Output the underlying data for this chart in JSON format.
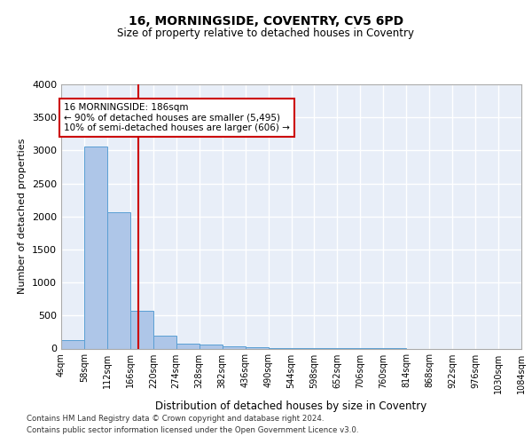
{
  "title": "16, MORNINGSIDE, COVENTRY, CV5 6PD",
  "subtitle": "Size of property relative to detached houses in Coventry",
  "xlabel": "Distribution of detached houses by size in Coventry",
  "ylabel": "Number of detached properties",
  "bar_color": "#aec6e8",
  "bar_edge_color": "#5a9fd4",
  "background_color": "#e8eef8",
  "grid_color": "#ffffff",
  "annotation_line_color": "#cc0000",
  "annotation_box_color": "#cc0000",
  "annotation_text": "16 MORNINGSIDE: 186sqm\n← 90% of detached houses are smaller (5,495)\n10% of semi-detached houses are larger (606) →",
  "footer_line1": "Contains HM Land Registry data © Crown copyright and database right 2024.",
  "footer_line2": "Contains public sector information licensed under the Open Government Licence v3.0.",
  "property_size": 186,
  "bin_edges": [
    4,
    58,
    112,
    166,
    220,
    274,
    328,
    382,
    436,
    490,
    544,
    598,
    652,
    706,
    760,
    814,
    868,
    922,
    976,
    1030,
    1084
  ],
  "bar_heights": [
    130,
    3060,
    2060,
    570,
    200,
    80,
    55,
    40,
    25,
    10,
    5,
    3,
    2,
    1,
    1,
    0,
    0,
    0,
    0,
    0
  ],
  "ylim": [
    0,
    4000
  ],
  "yticks": [
    0,
    500,
    1000,
    1500,
    2000,
    2500,
    3000,
    3500,
    4000
  ]
}
